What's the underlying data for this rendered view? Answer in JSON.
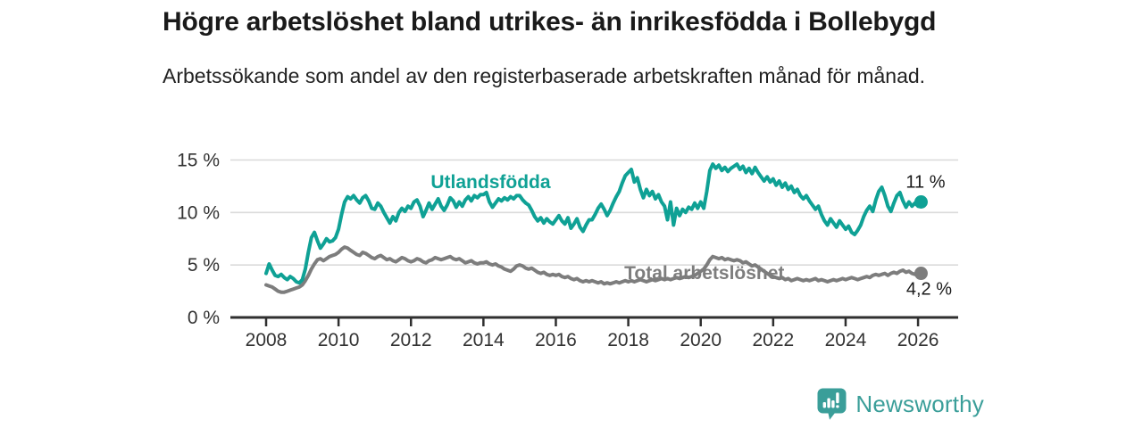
{
  "header": {
    "title": "Högre arbetslöshet bland utrikes- än inrikesfödda i Bollebygd",
    "subtitle": "Arbetssökande som andel av den registerbaserade arbetskraften månad för månad."
  },
  "chart_data": {
    "type": "line",
    "title": "Högre arbetslöshet bland utrikes- än inrikesfödda i Bollebygd",
    "xlabel": "",
    "ylabel": "Arbetssökande som andel av den registerbaserade arbetskraften",
    "x_unit": "month",
    "x_start": {
      "year": 2008,
      "month": 1
    },
    "x_end": {
      "year": 2026,
      "month": 2
    },
    "x_ticks": [
      2008,
      2010,
      2012,
      2014,
      2016,
      2018,
      2020,
      2022,
      2024,
      2026
    ],
    "y_ticks": [
      {
        "value": 0,
        "label": "0 %"
      },
      {
        "value": 5,
        "label": "5 %"
      },
      {
        "value": 10,
        "label": "10 %"
      },
      {
        "value": 15,
        "label": "15 %"
      }
    ],
    "ylim": [
      0,
      15.6
    ],
    "grid": "horizontal",
    "legend_position": "inline-labels",
    "series": [
      {
        "name": "Utlandsfödda",
        "color": "#0fa195",
        "end_label": "11 %",
        "end_value": 11.0,
        "label_pos": {
          "year": 2014.2,
          "value": 12.9
        },
        "values": [
          4.2,
          5.1,
          4.5,
          4.0,
          3.9,
          4.1,
          3.8,
          3.6,
          3.9,
          3.7,
          3.4,
          3.3,
          3.6,
          4.6,
          6.2,
          7.6,
          8.1,
          7.3,
          6.6,
          7.0,
          7.5,
          7.2,
          7.3,
          7.6,
          8.4,
          9.8,
          11.0,
          11.5,
          11.3,
          11.6,
          11.2,
          10.9,
          11.4,
          11.6,
          11.1,
          10.4,
          10.3,
          10.9,
          10.6,
          10.0,
          9.5,
          9.0,
          9.6,
          9.2,
          10.0,
          10.4,
          10.1,
          10.6,
          10.4,
          11.0,
          11.2,
          10.6,
          9.6,
          10.2,
          10.9,
          10.3,
          10.8,
          11.3,
          10.6,
          10.2,
          10.7,
          11.4,
          11.1,
          10.5,
          11.0,
          10.6,
          11.2,
          11.5,
          11.1,
          11.6,
          11.4,
          11.7,
          11.7,
          11.9,
          11.0,
          10.5,
          10.9,
          11.3,
          11.1,
          11.4,
          11.2,
          11.5,
          11.3,
          11.6,
          11.6,
          11.2,
          10.9,
          10.7,
          10.2,
          9.6,
          9.2,
          9.5,
          9.0,
          9.4,
          9.1,
          8.9,
          9.3,
          9.7,
          9.2,
          8.9,
          9.5,
          8.5,
          8.9,
          9.4,
          8.6,
          8.2,
          8.8,
          9.3,
          9.3,
          9.8,
          10.4,
          10.8,
          10.3,
          9.7,
          10.2,
          10.9,
          11.5,
          12.0,
          12.8,
          13.5,
          13.8,
          14.1,
          12.9,
          13.3,
          12.2,
          11.4,
          12.2,
          11.6,
          12.0,
          11.3,
          11.7,
          11.0,
          10.6,
          9.3,
          11.0,
          8.8,
          10.4,
          9.7,
          10.3,
          10.0,
          10.5,
          10.3,
          10.9,
          10.4,
          11.0,
          10.4,
          12.0,
          14.0,
          14.6,
          14.2,
          14.5,
          14.0,
          14.3,
          13.9,
          14.2,
          14.4,
          14.6,
          14.1,
          14.4,
          13.8,
          14.2,
          13.7,
          14.3,
          13.8,
          13.4,
          13.0,
          13.4,
          12.9,
          13.2,
          12.6,
          13.0,
          12.4,
          12.8,
          12.2,
          12.5,
          11.9,
          12.2,
          11.6,
          11.3,
          11.6,
          11.1,
          10.7,
          10.3,
          10.6,
          9.8,
          9.2,
          8.8,
          9.4,
          9.0,
          8.6,
          9.2,
          8.8,
          8.4,
          8.7,
          8.1,
          7.9,
          8.3,
          8.8,
          9.6,
          10.2,
          10.6,
          10.1,
          11.2,
          12.0,
          12.4,
          11.6,
          10.6,
          10.1,
          10.9,
          11.6,
          11.9,
          11.1,
          10.5,
          11.0,
          10.6,
          10.9,
          10.6,
          11.0
        ]
      },
      {
        "name": "Total arbetslöshet",
        "color": "#7d7d7d",
        "end_label": "4,2 %",
        "end_value": 4.2,
        "label_pos": {
          "year": 2020.1,
          "value": 4.25
        },
        "values": [
          3.1,
          3.0,
          2.9,
          2.7,
          2.5,
          2.4,
          2.4,
          2.5,
          2.6,
          2.7,
          2.8,
          2.9,
          3.1,
          3.5,
          4.0,
          4.6,
          5.1,
          5.5,
          5.6,
          5.4,
          5.6,
          5.8,
          5.9,
          6.0,
          6.2,
          6.5,
          6.7,
          6.6,
          6.4,
          6.2,
          6.0,
          5.9,
          6.2,
          6.1,
          5.9,
          5.7,
          5.6,
          5.8,
          5.9,
          5.7,
          5.5,
          5.6,
          5.4,
          5.3,
          5.5,
          5.7,
          5.6,
          5.4,
          5.3,
          5.4,
          5.6,
          5.5,
          5.3,
          5.2,
          5.4,
          5.5,
          5.7,
          5.6,
          5.5,
          5.6,
          5.7,
          5.8,
          5.6,
          5.5,
          5.6,
          5.4,
          5.2,
          5.3,
          5.4,
          5.2,
          5.1,
          5.2,
          5.2,
          5.3,
          5.1,
          5.0,
          5.1,
          4.9,
          4.8,
          4.6,
          4.5,
          4.4,
          4.6,
          4.9,
          5.0,
          4.9,
          4.7,
          4.6,
          4.7,
          4.5,
          4.3,
          4.2,
          4.3,
          4.1,
          4.0,
          4.1,
          4.0,
          4.1,
          3.9,
          3.8,
          3.9,
          3.7,
          3.6,
          3.7,
          3.5,
          3.4,
          3.5,
          3.4,
          3.5,
          3.4,
          3.3,
          3.4,
          3.2,
          3.3,
          3.2,
          3.3,
          3.4,
          3.3,
          3.4,
          3.5,
          3.4,
          3.5,
          3.4,
          3.5,
          3.6,
          3.5,
          3.4,
          3.5,
          3.6,
          3.5,
          3.6,
          3.7,
          3.6,
          3.7,
          3.6,
          3.7,
          3.8,
          3.7,
          3.8,
          3.9,
          3.8,
          3.9,
          4.0,
          4.2,
          4.4,
          4.6,
          5.0,
          5.5,
          5.8,
          5.7,
          5.6,
          5.7,
          5.5,
          5.6,
          5.5,
          5.4,
          5.5,
          5.4,
          5.2,
          5.3,
          5.1,
          4.9,
          5.0,
          4.8,
          4.6,
          4.4,
          4.2,
          4.0,
          3.9,
          3.8,
          3.7,
          3.8,
          3.6,
          3.7,
          3.5,
          3.6,
          3.7,
          3.6,
          3.5,
          3.6,
          3.5,
          3.6,
          3.7,
          3.5,
          3.6,
          3.5,
          3.4,
          3.5,
          3.6,
          3.5,
          3.6,
          3.7,
          3.6,
          3.7,
          3.8,
          3.7,
          3.6,
          3.7,
          3.8,
          3.9,
          3.8,
          4.0,
          4.1,
          4.0,
          4.1,
          4.2,
          4.0,
          4.2,
          4.3,
          4.2,
          4.4,
          4.5,
          4.3,
          4.4,
          4.2,
          4.1,
          4.1,
          4.2
        ]
      }
    ],
    "colors": {
      "axis": "#2f2f2f",
      "gridline": "#dbdbdb",
      "tick_text": "#333333",
      "annotation_text": "#1a1a1a"
    }
  },
  "footer": {
    "brand": "Newsworthy",
    "brand_color": "#3a9e99"
  }
}
